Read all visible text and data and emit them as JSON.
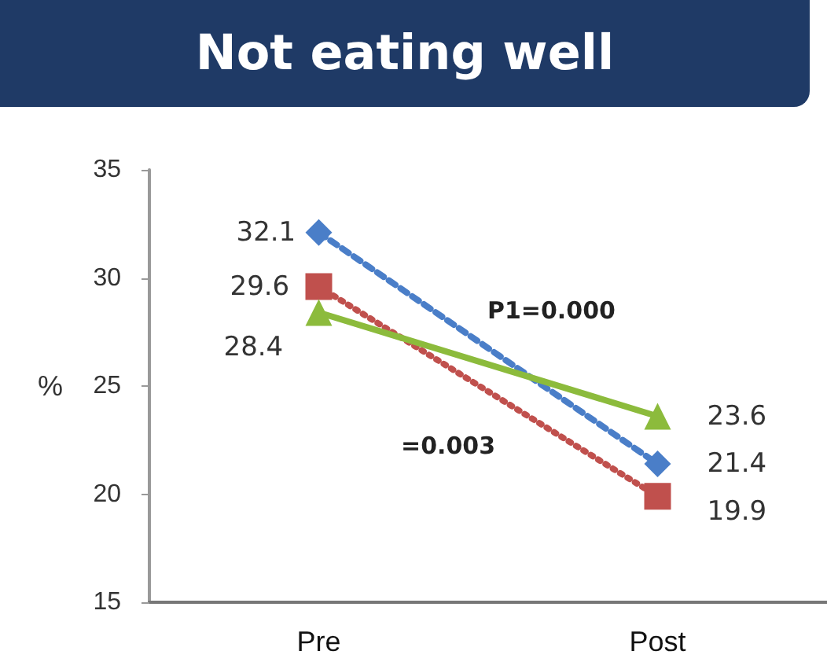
{
  "chart_data": {
    "type": "line",
    "title": "Not eating well",
    "ylabel": "%",
    "categories": [
      "Pre",
      "Post"
    ],
    "series": [
      {
        "color": "#4a7ec8",
        "values": [
          32.1,
          21.4
        ],
        "marker": "diamond",
        "line_style": "dashed"
      },
      {
        "color": "#c0504d",
        "values": [
          29.6,
          19.9
        ],
        "marker": "square",
        "line_style": "dotted"
      },
      {
        "color": "#8cbb3c",
        "values": [
          28.4,
          23.6
        ],
        "marker": "triangle",
        "line_style": "solid"
      }
    ],
    "ylim": [
      15,
      35
    ],
    "yticks": [
      15,
      20,
      25,
      30,
      35
    ],
    "grid": false,
    "data_labels": true,
    "annotations": [
      "P1=0.000",
      "=0.003"
    ]
  }
}
